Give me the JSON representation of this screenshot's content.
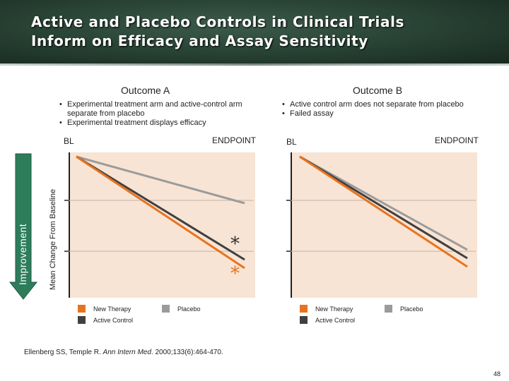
{
  "title": {
    "line1": "Active and Placebo Controls in Clinical Trials",
    "line2": "Inform on Efficacy and Assay Sensitivity"
  },
  "colors": {
    "new_therapy": "#e8731f",
    "active_control": "#404040",
    "placebo": "#9b9b9b",
    "panel_bg": "#f8e4d4",
    "arrow": "#2e7d5a"
  },
  "y_axis_label": "Mean Change From Baseline",
  "improvement_label": "Improvement",
  "legend": {
    "new_therapy": "New Therapy",
    "placebo": "Placebo",
    "active_control": "Active Control"
  },
  "chart_data": [
    {
      "type": "line",
      "title": "Outcome A",
      "bullets": [
        "Experimental treatment arm and active-control arm separate from placebo",
        "Experimental treatment displays efficacy"
      ],
      "x_labels": [
        "BL",
        "ENDPOINT"
      ],
      "x": [
        0,
        1
      ],
      "ylim": [
        0,
        -100
      ],
      "annotation": "*",
      "series": [
        {
          "name": "Placebo",
          "values": [
            0,
            -33
          ]
        },
        {
          "name": "Active Control",
          "values": [
            0,
            -73
          ]
        },
        {
          "name": "New Therapy",
          "values": [
            0,
            -79
          ]
        }
      ]
    },
    {
      "type": "line",
      "title": "Outcome B",
      "bullets": [
        "Active control arm does not separate from placebo",
        "Failed assay"
      ],
      "x_labels": [
        "BL",
        "ENDPOINT"
      ],
      "x": [
        0,
        1
      ],
      "ylim": [
        0,
        -100
      ],
      "series": [
        {
          "name": "Placebo",
          "values": [
            0,
            -66
          ]
        },
        {
          "name": "Active Control",
          "values": [
            0,
            -72
          ]
        },
        {
          "name": "New Therapy",
          "values": [
            0,
            -78
          ]
        }
      ]
    }
  ],
  "footer": {
    "authors": "Ellenberg SS, Temple R. ",
    "journal": "Ann Intern Med",
    "rest": ". 2000;133(6):464-470."
  },
  "page_number": "48"
}
